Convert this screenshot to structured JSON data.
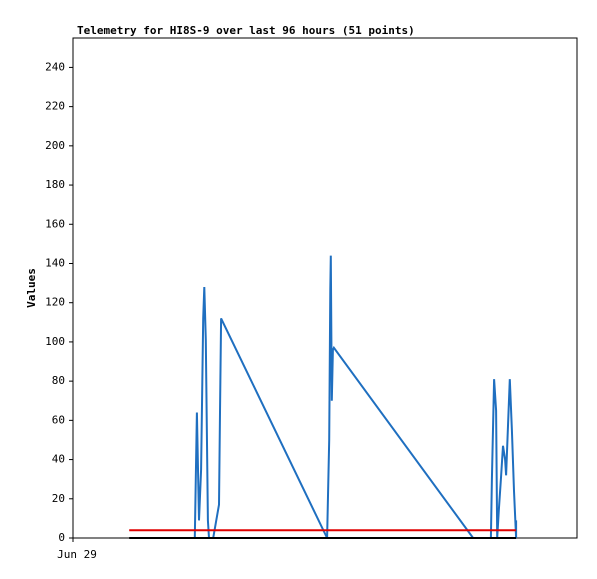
{
  "chart_data": {
    "type": "line",
    "title": "Telemetry for HI8S-9 over last 96 hours (51 points)",
    "y_label": "Values",
    "xlim": [
      0,
      96
    ],
    "xticks": [
      {
        "value": 0,
        "label": "Jun 29"
      }
    ],
    "ylim": [
      0,
      255
    ],
    "yticks": [
      0,
      20,
      40,
      60,
      80,
      100,
      120,
      140,
      160,
      180,
      200,
      220,
      240
    ],
    "series": [
      {
        "color": "#1f6fc0",
        "x": [
          23.2,
          23.6,
          24.0,
          24.4,
          24.8,
          25.0,
          25.3,
          25.7,
          25.9,
          26.7,
          27.8,
          28.0,
          28.2,
          48.4,
          48.8,
          49.0,
          49.1,
          49.3,
          49.5,
          49.7,
          76.2,
          79.6,
          79.8,
          80.2,
          80.6,
          80.8,
          81.1,
          81.5,
          81.9,
          82.3,
          82.5,
          82.9,
          83.2,
          83.6,
          84.0,
          84.4,
          84.4
        ],
        "values": [
          0,
          64,
          9,
          35,
          112,
          128,
          101,
          9,
          0,
          0,
          17,
          64,
          112,
          0,
          50,
          127,
          144,
          70,
          96,
          97,
          0,
          0,
          30,
          81,
          65,
          0,
          14,
          30,
          47,
          40,
          32,
          60,
          81,
          55,
          24,
          0,
          9
        ]
      },
      {
        "color": "#e00000",
        "x": [
          10.7,
          84.4
        ],
        "values": [
          4,
          4
        ]
      },
      {
        "color": "#000000",
        "x": [
          10.7,
          84.4
        ],
        "values": [
          0,
          0
        ]
      }
    ]
  }
}
